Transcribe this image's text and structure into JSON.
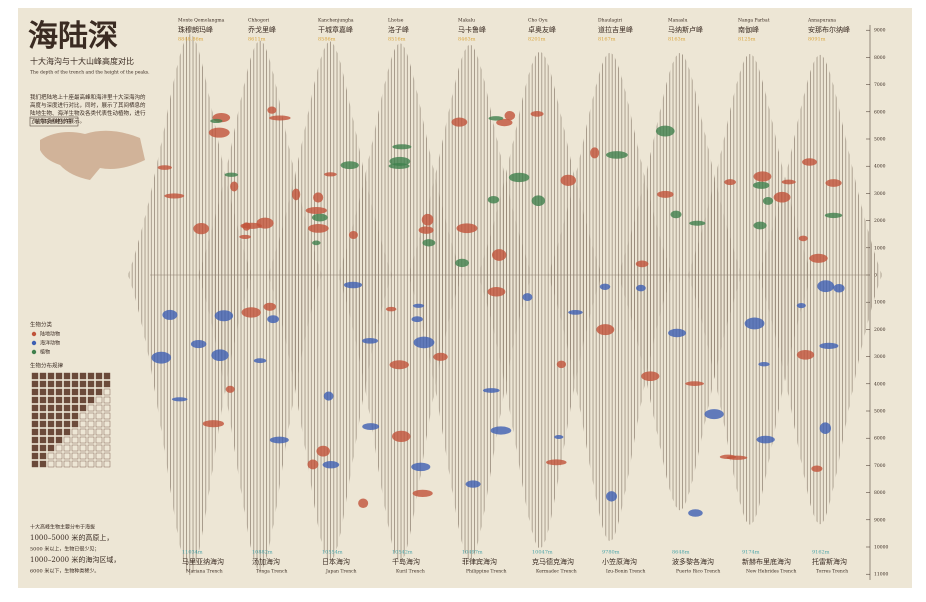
{
  "header": {
    "title": "海陆深",
    "subtitle": "十大海沟与十大山峰高度对比",
    "subtitle_en": "The depth of the trench and the height of the peaks.",
    "intro": "我们把陆地上十座最高峰和海洋里十大深海沟的高度与深度进行对比，同时，展示了其间栖息的陆地生物、海洋生物及各类代表性动植物，进行了生物多样性的展示。"
  },
  "map_panel": {
    "title": "海沟与高峰分布"
  },
  "legend": {
    "title": "生物分类",
    "items": [
      {
        "label": "陆地动物",
        "color": "#c0533a"
      },
      {
        "label": "海洋动物",
        "color": "#3d5fb3"
      },
      {
        "label": "植物",
        "color": "#3f7f4c"
      }
    ]
  },
  "distribution": {
    "title": "生物分布规律"
  },
  "notes": [
    "十大高峰生物主要分布于海拔",
    "1000–5000 米的高原上，",
    "5000 米以上，生物已很少见；",
    "1000–2000 米的海沟区域，",
    "6000 米以下，生物种类稀少。"
  ],
  "peaks": [
    {
      "name_en": "Monte Qomolangma",
      "name": "珠穆朗玛峰",
      "height": {
        "value": 8848.86,
        "label": "8848.86m"
      }
    },
    {
      "name_en": "Chhogori",
      "name": "乔戈里峰",
      "height": {
        "value": 8611,
        "label": "8611m"
      }
    },
    {
      "name_en": "Kanchenjungha",
      "name": "干城章嘉峰",
      "height": {
        "value": 8586,
        "label": "8586m"
      }
    },
    {
      "name_en": "Lhotse",
      "name": "洛子峰",
      "height": {
        "value": 8516,
        "label": "8516m"
      }
    },
    {
      "name_en": "Makalu",
      "name": "马卡鲁峰",
      "height": {
        "value": 8463,
        "label": "8463m"
      }
    },
    {
      "name_en": "Cho Oyu",
      "name": "卓奥友峰",
      "height": {
        "value": 8201,
        "label": "8201m"
      }
    },
    {
      "name_en": "Dhaulagiri",
      "name": "道拉吉里峰",
      "height": {
        "value": 8167,
        "label": "8167m"
      }
    },
    {
      "name_en": "Manaslu",
      "name": "马纳斯卢峰",
      "height": {
        "value": 8163,
        "label": "8163m"
      }
    },
    {
      "name_en": "Nanga Parbat",
      "name": "南伽峰",
      "height": {
        "value": 8125,
        "label": "8125m"
      }
    },
    {
      "name_en": "Annapurana",
      "name": "安那布尔纳峰",
      "height": {
        "value": 8091,
        "label": "8091m"
      }
    }
  ],
  "trenches": [
    {
      "depth": {
        "value": 11034,
        "label": "11034m"
      },
      "name": "马里亚纳海沟",
      "name_en": "Mariana Trench"
    },
    {
      "depth": {
        "value": 10882,
        "label": "10882m"
      },
      "name": "汤加海沟",
      "name_en": "Tonga Trench"
    },
    {
      "depth": {
        "value": 10554,
        "label": "10554m"
      },
      "name": "日本海沟",
      "name_en": "Japan Trench"
    },
    {
      "depth": {
        "value": 10542,
        "label": "10542m"
      },
      "name": "千岛海沟",
      "name_en": "Kuril Trench"
    },
    {
      "depth": {
        "value": 10497,
        "label": "10497m"
      },
      "name": "菲律宾海沟",
      "name_en": "Philippine Trench"
    },
    {
      "depth": {
        "value": 10047,
        "label": "10047m"
      },
      "name": "克马德克海沟",
      "name_en": "Kermadec Trench"
    },
    {
      "depth": {
        "value": 9780,
        "label": "9780m"
      },
      "name": "小笠原海沟",
      "name_en": "Izu-Bonin Trench"
    },
    {
      "depth": {
        "value": 8648,
        "label": "8648m"
      },
      "name": "波多黎各海沟",
      "name_en": "Puerto Rico Trench"
    },
    {
      "depth": {
        "value": 9174,
        "label": "9174m"
      },
      "name": "新赫布里底海沟",
      "name_en": "New Hebrides Trench"
    },
    {
      "depth": {
        "value": 9162,
        "label": "9162m"
      },
      "name": "托雷斯海沟",
      "name_en": "Torres Trench"
    }
  ],
  "scale": {
    "ticks": [
      9000,
      8000,
      7000,
      6000,
      5000,
      4000,
      3000,
      2000,
      1000,
      0,
      {
        "value": -1000,
        "label": "1000"
      },
      {
        "value": -2000,
        "label": "2000"
      },
      {
        "value": -3000,
        "label": "3000"
      },
      {
        "value": -4000,
        "label": "4000"
      },
      {
        "value": -5000,
        "label": "5000"
      },
      {
        "value": -6000,
        "label": "6000"
      },
      {
        "value": -7000,
        "label": "7000"
      },
      {
        "value": -8000,
        "label": "8000"
      },
      {
        "value": -9000,
        "label": "9000"
      },
      {
        "value": -10000,
        "label": "10000"
      },
      {
        "value": -11000,
        "label": "11000"
      }
    ]
  }
}
